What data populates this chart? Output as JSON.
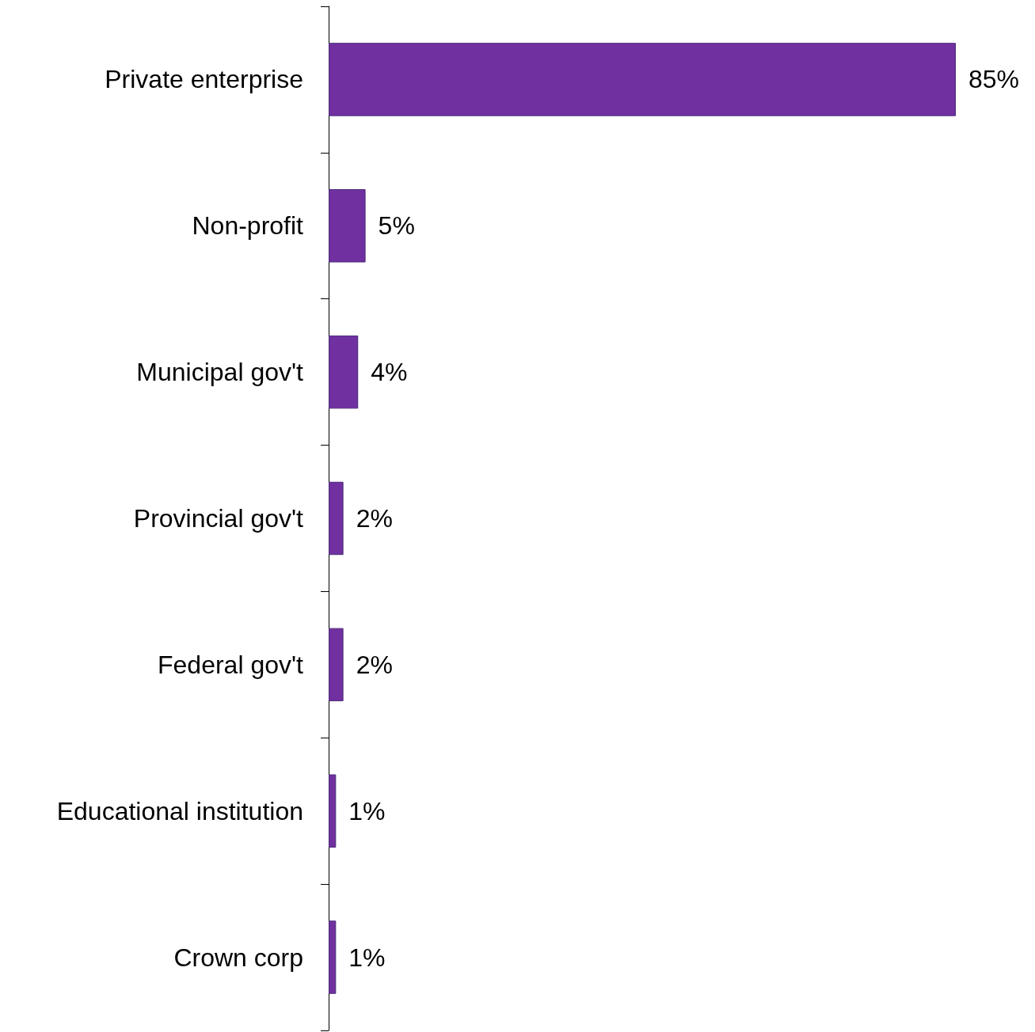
{
  "chart_data": {
    "type": "bar",
    "orientation": "horizontal",
    "categories": [
      "Private enterprise",
      "Non-profit",
      "Municipal gov't",
      "Provincial gov't",
      "Federal gov't",
      "Educational institution",
      "Crown corp"
    ],
    "values": [
      85,
      5,
      4,
      2,
      2,
      1,
      1
    ],
    "value_labels": [
      "85%",
      "5%",
      "4%",
      "2%",
      "2%",
      "1%",
      "1%"
    ],
    "color": "#7030a0"
  }
}
